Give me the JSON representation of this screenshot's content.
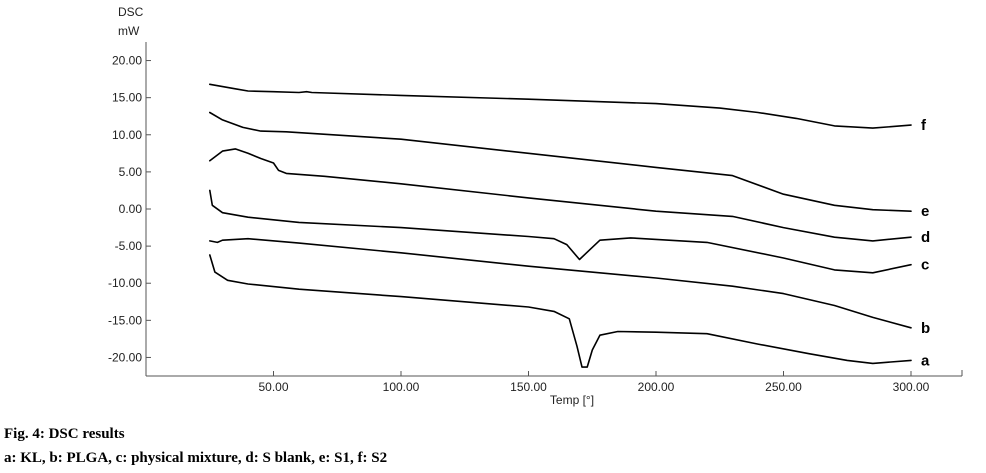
{
  "chart_data": {
    "type": "line",
    "ylabel_top": "DSC",
    "ylabel_unit": "mW",
    "xlabel": "Temp [°]",
    "xlim": [
      0,
      320
    ],
    "ylim": [
      -22.5,
      22.5
    ],
    "x_ticks": [
      "50.00",
      "100.00",
      "150.00",
      "200.00",
      "250.00",
      "300.00"
    ],
    "x_tick_values": [
      50,
      100,
      150,
      200,
      250,
      300
    ],
    "y_ticks": [
      "20.00",
      "15.00",
      "10.00",
      "5.00",
      "0.00",
      "-5.00",
      "-10.00",
      "-15.00",
      "-20.00"
    ],
    "y_tick_values": [
      20,
      15,
      10,
      5,
      0,
      -5,
      -10,
      -15,
      -20
    ],
    "grid": false,
    "series": [
      {
        "name": "f",
        "points": [
          [
            25,
            16.8
          ],
          [
            35,
            16.2
          ],
          [
            40,
            15.9
          ],
          [
            50,
            15.8
          ],
          [
            60,
            15.7
          ],
          [
            63,
            15.8
          ],
          [
            65,
            15.7
          ],
          [
            100,
            15.3
          ],
          [
            150,
            14.8
          ],
          [
            200,
            14.2
          ],
          [
            225,
            13.6
          ],
          [
            240,
            13.0
          ],
          [
            255,
            12.2
          ],
          [
            270,
            11.2
          ],
          [
            285,
            10.9
          ],
          [
            300,
            11.3
          ]
        ]
      },
      {
        "name": "e",
        "points": [
          [
            25,
            13.0
          ],
          [
            30,
            12.0
          ],
          [
            38,
            11.0
          ],
          [
            45,
            10.5
          ],
          [
            55,
            10.4
          ],
          [
            100,
            9.4
          ],
          [
            150,
            7.5
          ],
          [
            200,
            5.6
          ],
          [
            230,
            4.5
          ],
          [
            250,
            2.0
          ],
          [
            270,
            0.5
          ],
          [
            285,
            -0.1
          ],
          [
            300,
            -0.3
          ]
        ]
      },
      {
        "name": "d",
        "points": [
          [
            25,
            6.5
          ],
          [
            30,
            7.8
          ],
          [
            35,
            8.1
          ],
          [
            40,
            7.5
          ],
          [
            45,
            6.8
          ],
          [
            50,
            6.2
          ],
          [
            52,
            5.2
          ],
          [
            55,
            4.8
          ],
          [
            70,
            4.4
          ],
          [
            100,
            3.4
          ],
          [
            150,
            1.5
          ],
          [
            200,
            -0.3
          ],
          [
            230,
            -1.0
          ],
          [
            250,
            -2.5
          ],
          [
            270,
            -3.8
          ],
          [
            285,
            -4.3
          ],
          [
            300,
            -3.8
          ]
        ]
      },
      {
        "name": "c",
        "points": [
          [
            25,
            2.5
          ],
          [
            26,
            0.5
          ],
          [
            30,
            -0.5
          ],
          [
            40,
            -1.1
          ],
          [
            60,
            -1.8
          ],
          [
            100,
            -2.5
          ],
          [
            150,
            -3.7
          ],
          [
            160,
            -4.0
          ],
          [
            165,
            -4.8
          ],
          [
            170,
            -6.8
          ],
          [
            174,
            -5.5
          ],
          [
            178,
            -4.2
          ],
          [
            190,
            -3.9
          ],
          [
            220,
            -4.5
          ],
          [
            250,
            -6.6
          ],
          [
            270,
            -8.2
          ],
          [
            285,
            -8.6
          ],
          [
            300,
            -7.5
          ]
        ]
      },
      {
        "name": "b",
        "points": [
          [
            25,
            -4.3
          ],
          [
            28,
            -4.5
          ],
          [
            30,
            -4.2
          ],
          [
            40,
            -4.0
          ],
          [
            60,
            -4.6
          ],
          [
            100,
            -5.9
          ],
          [
            150,
            -7.7
          ],
          [
            200,
            -9.3
          ],
          [
            230,
            -10.4
          ],
          [
            250,
            -11.4
          ],
          [
            270,
            -13.0
          ],
          [
            285,
            -14.6
          ],
          [
            300,
            -16.0
          ]
        ]
      },
      {
        "name": "a",
        "points": [
          [
            25,
            -6.2
          ],
          [
            27,
            -8.5
          ],
          [
            32,
            -9.6
          ],
          [
            40,
            -10.1
          ],
          [
            60,
            -10.8
          ],
          [
            100,
            -11.8
          ],
          [
            150,
            -13.2
          ],
          [
            160,
            -13.8
          ],
          [
            166,
            -14.8
          ],
          [
            169,
            -18.5
          ],
          [
            171,
            -21.3
          ],
          [
            173,
            -21.3
          ],
          [
            175,
            -19.0
          ],
          [
            178,
            -17.0
          ],
          [
            185,
            -16.5
          ],
          [
            200,
            -16.6
          ],
          [
            220,
            -16.8
          ],
          [
            240,
            -18.2
          ],
          [
            260,
            -19.5
          ],
          [
            275,
            -20.4
          ],
          [
            285,
            -20.8
          ],
          [
            300,
            -20.4
          ]
        ]
      }
    ]
  },
  "caption": {
    "title": "Fig. 4: DSC results",
    "legend": "a: KL, b: PLGA, c: physical mixture, d: S blank, e: S1, f: S2"
  }
}
